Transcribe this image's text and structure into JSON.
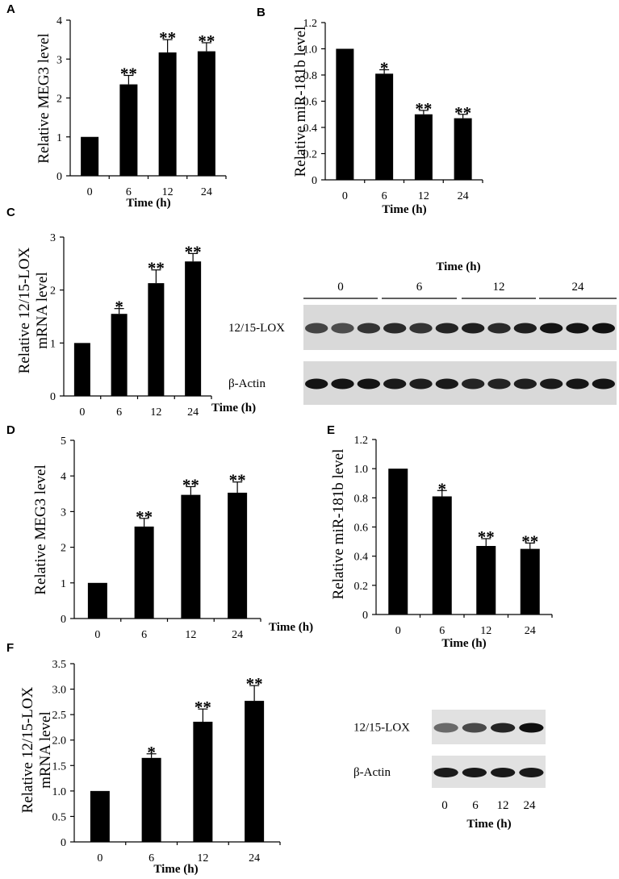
{
  "chart_data": [
    {
      "panel": "A",
      "type": "bar",
      "categories": [
        "0",
        "6",
        "12",
        "24"
      ],
      "values": [
        1.0,
        2.35,
        3.17,
        3.2
      ],
      "errors": [
        0,
        0.23,
        0.33,
        0.22
      ],
      "annotations": [
        "",
        "**",
        "**",
        "**"
      ],
      "ylabel": "Relative MEG3 level",
      "xlabel": "Time (h)",
      "ylim": [
        0,
        4
      ],
      "yticks": [
        "0",
        "1",
        "2",
        "3",
        "4"
      ]
    },
    {
      "panel": "B",
      "type": "bar",
      "categories": [
        "0",
        "6",
        "12",
        "24"
      ],
      "values": [
        1.0,
        0.81,
        0.5,
        0.47
      ],
      "errors": [
        0,
        0.03,
        0.03,
        0.03
      ],
      "annotations": [
        "",
        "*",
        "**",
        "**"
      ],
      "ylabel": "Relative miR-181b level",
      "xlabel": "Time (h)",
      "ylim": [
        0,
        1.2
      ],
      "yticks": [
        "0",
        "0.2",
        "0.4",
        "0.6",
        "0.8",
        "1.0",
        "1.2"
      ]
    },
    {
      "panel": "C",
      "type": "bar",
      "categories": [
        "0",
        "6",
        "12",
        "24"
      ],
      "values": [
        1.0,
        1.55,
        2.13,
        2.54
      ],
      "errors": [
        0,
        0.1,
        0.25,
        0.15
      ],
      "annotations": [
        "",
        "*",
        "**",
        "**"
      ],
      "ylabel": [
        "Relative 12/15-LOX",
        "mRNA level"
      ],
      "xlabel": "Time (h)",
      "ylim": [
        0,
        3
      ],
      "yticks": [
        "0",
        "1",
        "2",
        "3"
      ]
    },
    {
      "panel": "D",
      "type": "bar",
      "categories": [
        "0",
        "6",
        "12",
        "24"
      ],
      "values": [
        1.0,
        2.58,
        3.47,
        3.53
      ],
      "errors": [
        0,
        0.23,
        0.23,
        0.3
      ],
      "annotations": [
        "",
        "**",
        "**",
        "**"
      ],
      "ylabel": "Relative MEG3 level",
      "xlabel": "Time (h)",
      "ylim": [
        0,
        5
      ],
      "yticks": [
        "0",
        "1",
        "2",
        "3",
        "4",
        "5"
      ]
    },
    {
      "panel": "E",
      "type": "bar",
      "categories": [
        "0",
        "6",
        "12",
        "24"
      ],
      "values": [
        1.0,
        0.81,
        0.47,
        0.45
      ],
      "errors": [
        0,
        0.04,
        0.05,
        0.04
      ],
      "annotations": [
        "",
        "*",
        "**",
        "**"
      ],
      "ylabel": "Relative miR-181b level",
      "xlabel": "Time (h)",
      "ylim": [
        0,
        1.2
      ],
      "yticks": [
        "0",
        "0.2",
        "0.4",
        "0.6",
        "0.8",
        "1.0",
        "1.2"
      ]
    },
    {
      "panel": "F",
      "type": "bar",
      "categories": [
        "0",
        "6",
        "12",
        "24"
      ],
      "values": [
        1.0,
        1.65,
        2.36,
        2.77
      ],
      "errors": [
        0,
        0.08,
        0.25,
        0.3
      ],
      "annotations": [
        "",
        "*",
        "**",
        "**"
      ],
      "ylabel": [
        "Relative 12/15-LOX",
        "mRNA level"
      ],
      "xlabel": "Time (h)",
      "ylim": [
        0,
        3.5
      ],
      "yticks": [
        "0",
        "0.5",
        "1.0",
        "1.5",
        "2.0",
        "2.5",
        "3.0",
        "3.5"
      ]
    }
  ],
  "blots": [
    {
      "panel": "C",
      "title": "Time (h)",
      "groups": [
        "0",
        "6",
        "12",
        "24"
      ],
      "rows": [
        {
          "label": "12/15-LOX",
          "intensities": [
            0.72,
            0.68,
            0.8,
            0.85,
            0.8,
            0.88,
            0.9,
            0.85,
            0.9,
            0.95,
            0.95,
            0.97
          ]
        },
        {
          "label": "β-Actin",
          "intensities": [
            0.95,
            0.95,
            0.95,
            0.92,
            0.9,
            0.92,
            0.88,
            0.88,
            0.9,
            0.92,
            0.94,
            0.95
          ]
        }
      ]
    },
    {
      "panel": "F",
      "rows": [
        {
          "label": "12/15-LOX",
          "intensities": [
            0.55,
            0.7,
            0.88,
            0.98
          ]
        },
        {
          "label": "β-Actin",
          "intensities": [
            0.92,
            0.93,
            0.93,
            0.93
          ]
        }
      ],
      "lanes": [
        "0",
        "6",
        "12",
        "24"
      ],
      "xlabel": "Time (h)"
    }
  ]
}
